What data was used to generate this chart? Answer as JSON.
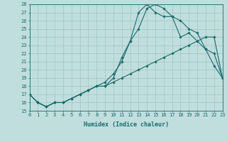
{
  "xlabel": "Humidex (Indice chaleur)",
  "xlim": [
    0,
    23
  ],
  "ylim": [
    15,
    28
  ],
  "xticks": [
    0,
    1,
    2,
    3,
    4,
    5,
    6,
    7,
    8,
    9,
    10,
    11,
    12,
    13,
    14,
    15,
    16,
    17,
    18,
    19,
    20,
    21,
    22,
    23
  ],
  "yticks": [
    15,
    16,
    17,
    18,
    19,
    20,
    21,
    22,
    23,
    24,
    25,
    26,
    27,
    28
  ],
  "background_color": "#c0dede",
  "line_color": "#1a6b6b",
  "line1_x": [
    0,
    1,
    2,
    3,
    4,
    5,
    6,
    7,
    8,
    9,
    10,
    11,
    12,
    13,
    14,
    15,
    16,
    17,
    18,
    19,
    20,
    21,
    22,
    23
  ],
  "line1_y": [
    17,
    16,
    15.5,
    16,
    16,
    16.5,
    17,
    17.5,
    18,
    18,
    19,
    21.5,
    23.5,
    25,
    27.5,
    28,
    27.5,
    26.5,
    26,
    25,
    24.5,
    22.5,
    20.5,
    19
  ],
  "line2_x": [
    0,
    1,
    2,
    3,
    4,
    5,
    6,
    7,
    8,
    9,
    10,
    11,
    12,
    13,
    14,
    15,
    16,
    17,
    18,
    19,
    20,
    21,
    22,
    23
  ],
  "line2_y": [
    17,
    16,
    15.5,
    16,
    16,
    16.5,
    17,
    17.5,
    18,
    18.5,
    19.5,
    21,
    23.5,
    27,
    28,
    27,
    26.5,
    26.5,
    24,
    24.5,
    23.5,
    22.5,
    22,
    19
  ],
  "line3_x": [
    0,
    1,
    2,
    3,
    4,
    5,
    6,
    7,
    8,
    9,
    10,
    11,
    12,
    13,
    14,
    15,
    16,
    17,
    18,
    19,
    20,
    21,
    22,
    23
  ],
  "line3_y": [
    17,
    16,
    15.5,
    16,
    16,
    16.5,
    17,
    17.5,
    18,
    18,
    18.5,
    19,
    19.5,
    20,
    20.5,
    21,
    21.5,
    22,
    22.5,
    23,
    23.5,
    24,
    24,
    19
  ],
  "tick_fontsize": 5,
  "xlabel_fontsize": 6
}
